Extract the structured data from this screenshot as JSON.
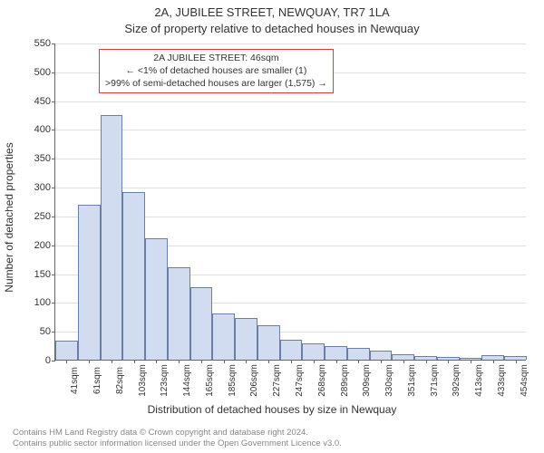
{
  "title": "2A, JUBILEE STREET, NEWQUAY, TR7 1LA",
  "subtitle": "Size of property relative to detached houses in Newquay",
  "ylabel": "Number of detached properties",
  "xlabel": "Distribution of detached houses by size in Newquay",
  "chart": {
    "type": "histogram",
    "ylim": [
      0,
      550
    ],
    "ytick_step": 50,
    "plot_background": "#ffffff",
    "grid_color": "#e0e0e0",
    "axis_color": "#666666",
    "tick_fontsize": 11,
    "bar_fill": "#d1dcf0",
    "bar_border": "#6a7fa8",
    "categories": [
      "41sqm",
      "61sqm",
      "82sqm",
      "103sqm",
      "123sqm",
      "144sqm",
      "165sqm",
      "185sqm",
      "206sqm",
      "227sqm",
      "247sqm",
      "268sqm",
      "289sqm",
      "309sqm",
      "330sqm",
      "351sqm",
      "371sqm",
      "392sqm",
      "413sqm",
      "433sqm",
      "454sqm"
    ],
    "values": [
      33,
      268,
      425,
      290,
      210,
      160,
      125,
      80,
      73,
      60,
      35,
      28,
      23,
      20,
      15,
      10,
      6,
      4,
      3,
      8,
      6
    ]
  },
  "annotation": {
    "line1": "2A JUBILEE STREET: 46sqm",
    "line2": "← <1% of detached houses are smaller (1)",
    "line3": ">99% of semi-detached houses are larger (1,575) →",
    "border_color": "#d04040"
  },
  "footer": {
    "line1": "Contains HM Land Registry data © Crown copyright and database right 2024.",
    "line2": "Contains public sector information licensed under the Open Government Licence v3.0."
  }
}
